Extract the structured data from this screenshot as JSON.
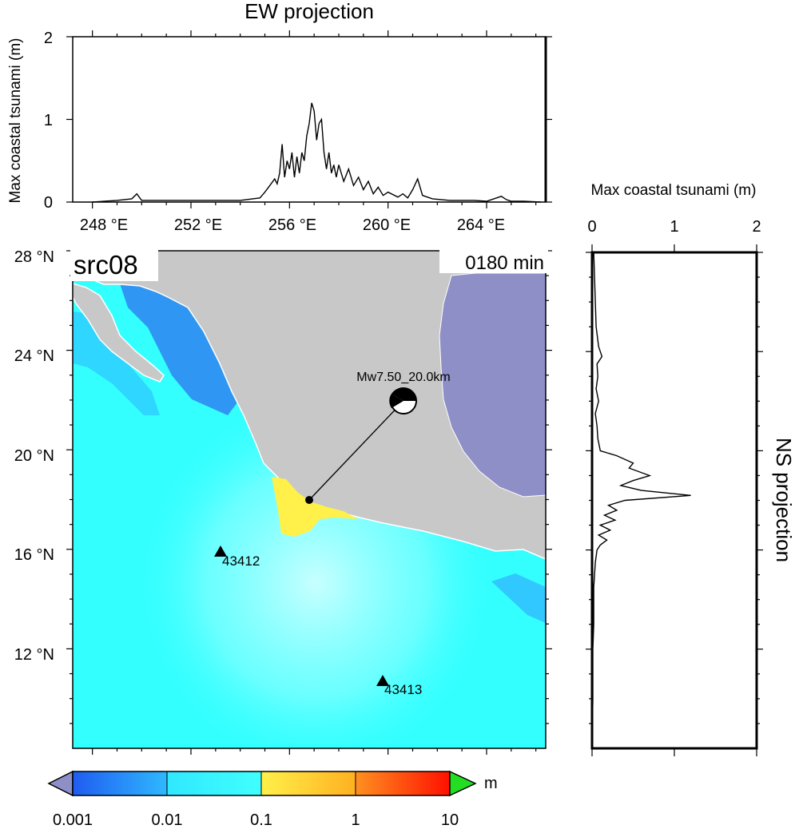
{
  "ew_panel": {
    "title": "EW projection",
    "ylabel": "Max coastal tsunami (m)",
    "y_ticks": [
      "0",
      "1",
      "2"
    ],
    "x_ticks": [
      "248 °E",
      "252 °E",
      "256 °E",
      "260 °E",
      "264 °E"
    ]
  },
  "ns_panel": {
    "title": "NS projection",
    "xlabel": "Max coastal tsunami (m)",
    "x_ticks": [
      "0",
      "1",
      "2"
    ]
  },
  "map": {
    "source_label": "src08",
    "time_label": "0180 min",
    "lat_ticks": [
      "28 °N",
      "24 °N",
      "20 °N",
      "16 °N",
      "12 °N"
    ],
    "event_label": "Mw7.50_20.0km",
    "stations": [
      {
        "id": "43412",
        "lon": 254.0,
        "lat": 16.0
      },
      {
        "id": "43413",
        "lon": 260.6,
        "lat": 10.8
      }
    ],
    "epicenter": {
      "lon": 257.5,
      "lat": 18.2
    },
    "colors": {
      "ocean": "#33ffff",
      "land": "#c8c8c8",
      "gulf": "#8f8fc8",
      "high": "#fff04a"
    }
  },
  "colorbar": {
    "unit": "m",
    "labels": [
      "0.001",
      "0.01",
      "0.1",
      "1",
      "10"
    ],
    "colors": [
      "#2060f0",
      "#36e8ff",
      "#c8ffff",
      "#ffe040",
      "#ff9020",
      "#ff0000"
    ]
  },
  "chart_data": [
    {
      "type": "line",
      "title": "EW projection",
      "ylabel": "Max coastal tsunami (m)",
      "xlim": [
        247.2,
        266.4
      ],
      "ylim": [
        0,
        2
      ],
      "x": [
        248.0,
        249.0,
        249.6,
        249.8,
        250.0,
        251.0,
        253.0,
        254.0,
        254.8,
        255.0,
        255.2,
        255.4,
        255.5,
        255.6,
        255.7,
        255.8,
        255.9,
        256.0,
        256.1,
        256.2,
        256.3,
        256.4,
        256.5,
        256.6,
        256.7,
        256.8,
        256.9,
        257.0,
        257.1,
        257.2,
        257.3,
        257.4,
        257.5,
        257.6,
        257.7,
        257.8,
        257.9,
        258.0,
        258.2,
        258.4,
        258.6,
        258.8,
        259.0,
        259.2,
        259.4,
        259.6,
        259.8,
        260.0,
        260.4,
        260.6,
        260.8,
        261.0,
        261.2,
        261.4,
        261.8,
        262.5,
        263.5,
        264.0,
        264.6,
        264.8,
        265.0,
        265.5,
        266.2
      ],
      "y": [
        0.0,
        0.02,
        0.04,
        0.1,
        0.02,
        0.02,
        0.02,
        0.02,
        0.05,
        0.12,
        0.2,
        0.28,
        0.22,
        0.35,
        0.7,
        0.3,
        0.5,
        0.4,
        0.6,
        0.3,
        0.55,
        0.35,
        0.6,
        0.5,
        0.8,
        0.95,
        1.2,
        1.1,
        0.75,
        0.95,
        1.0,
        0.6,
        0.4,
        0.6,
        0.35,
        0.45,
        0.3,
        0.45,
        0.25,
        0.4,
        0.2,
        0.3,
        0.15,
        0.25,
        0.1,
        0.18,
        0.08,
        0.12,
        0.06,
        0.1,
        0.05,
        0.15,
        0.28,
        0.08,
        0.04,
        0.02,
        0.02,
        0.01,
        0.07,
        0.03,
        0.01,
        0.01,
        0.0
      ]
    },
    {
      "type": "line",
      "title": "NS projection",
      "xlabel": "Max coastal tsunami (m)",
      "xlim": [
        0,
        2
      ],
      "ylim": [
        8,
        28
      ],
      "y": [
        28.0,
        27.0,
        26.0,
        25.0,
        24.2,
        23.8,
        23.5,
        23.0,
        22.5,
        22.0,
        21.5,
        21.0,
        20.5,
        20.0,
        19.8,
        19.5,
        19.3,
        19.0,
        18.8,
        18.6,
        18.4,
        18.2,
        18.0,
        17.8,
        17.6,
        17.4,
        17.2,
        17.0,
        16.8,
        16.6,
        16.4,
        16.2,
        16.0,
        15.5,
        15.0,
        14.5,
        14.0,
        13.0,
        12.0,
        10.0,
        8.0
      ],
      "x": [
        0.02,
        0.03,
        0.04,
        0.05,
        0.08,
        0.12,
        0.06,
        0.07,
        0.05,
        0.08,
        0.04,
        0.06,
        0.07,
        0.1,
        0.3,
        0.5,
        0.45,
        0.7,
        0.5,
        0.35,
        0.6,
        1.2,
        0.4,
        0.2,
        0.3,
        0.15,
        0.28,
        0.1,
        0.22,
        0.08,
        0.18,
        0.1,
        0.06,
        0.04,
        0.03,
        0.02,
        0.02,
        0.02,
        0.01,
        0.01,
        0.0
      ]
    }
  ]
}
